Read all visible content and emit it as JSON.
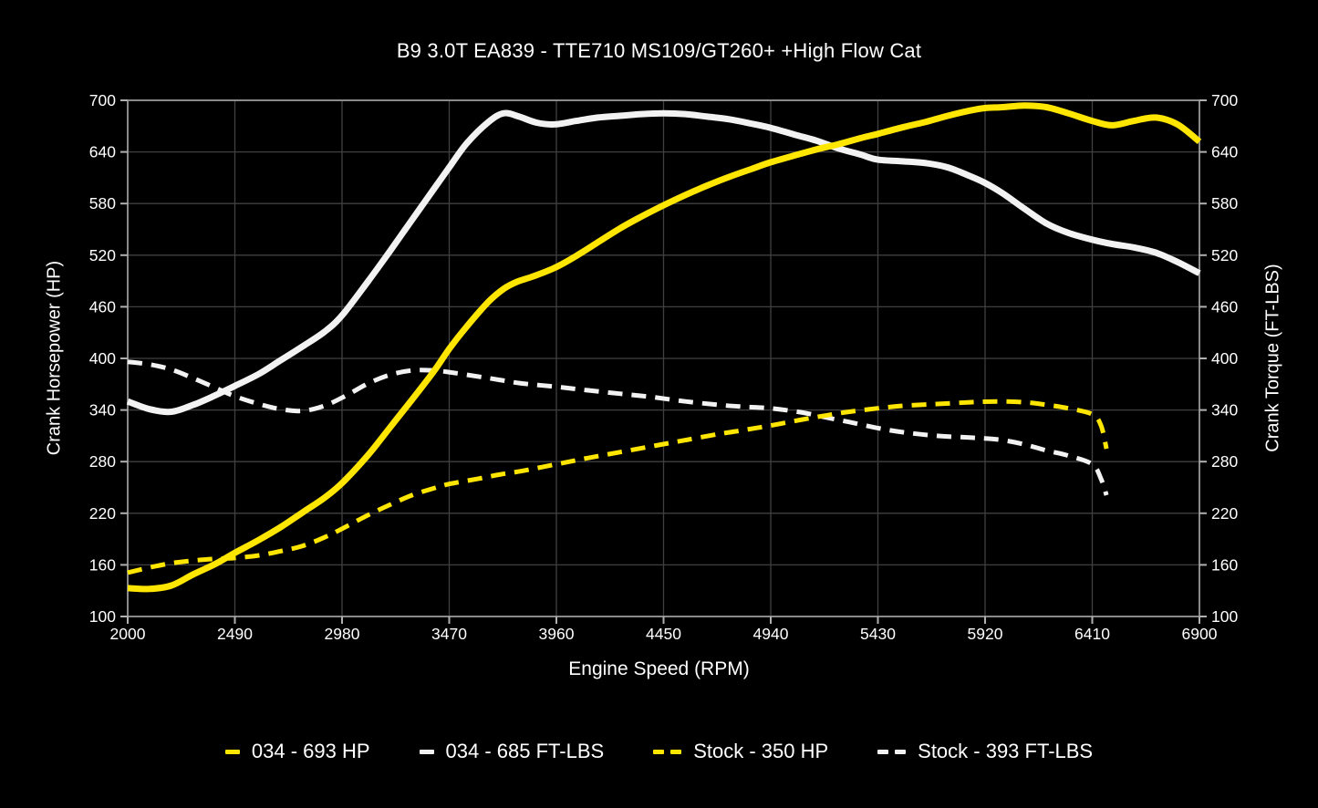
{
  "colors": {
    "background": "#000000",
    "yellow": "#ffe600",
    "white": "#f2f2f2",
    "grid": "#404040",
    "border": "#8a8a8a",
    "tick": "#b0b0b0",
    "text": "#ffffff"
  },
  "chart_data": {
    "type": "line",
    "title": "B9 3.0T EA839 - TTE710 MS109/GT260+ +High Flow Cat",
    "xlabel": "Engine Speed (RPM)",
    "ylabel_left": "Crank Horsepower (HP)",
    "ylabel_right": "Crank Torque (FT-LBS)",
    "xlim": [
      2000,
      6900
    ],
    "ylim": [
      100,
      700
    ],
    "x_ticks": [
      2000,
      2490,
      2980,
      3470,
      3960,
      4450,
      4940,
      5430,
      5920,
      6410,
      6900
    ],
    "y_ticks": [
      100,
      160,
      220,
      280,
      340,
      400,
      460,
      520,
      580,
      640,
      700
    ],
    "grid": true,
    "legend_position": "bottom",
    "series": [
      {
        "name": "034 - 693 HP",
        "axis": "left",
        "color": "#ffe600",
        "style": "solid",
        "peak": 693,
        "points": [
          [
            2000,
            133
          ],
          [
            2100,
            132
          ],
          [
            2200,
            136
          ],
          [
            2300,
            149
          ],
          [
            2400,
            161
          ],
          [
            2490,
            174
          ],
          [
            2600,
            189
          ],
          [
            2700,
            204
          ],
          [
            2800,
            221
          ],
          [
            2900,
            238
          ],
          [
            2980,
            255
          ],
          [
            3100,
            288
          ],
          [
            3200,
            320
          ],
          [
            3300,
            352
          ],
          [
            3400,
            385
          ],
          [
            3470,
            411
          ],
          [
            3550,
            437
          ],
          [
            3650,
            466
          ],
          [
            3720,
            481
          ],
          [
            3780,
            489
          ],
          [
            3850,
            495
          ],
          [
            3950,
            505
          ],
          [
            4050,
            519
          ],
          [
            4150,
            535
          ],
          [
            4250,
            551
          ],
          [
            4350,
            565
          ],
          [
            4450,
            578
          ],
          [
            4550,
            590
          ],
          [
            4650,
            601
          ],
          [
            4750,
            611
          ],
          [
            4850,
            620
          ],
          [
            4940,
            628
          ],
          [
            5050,
            636
          ],
          [
            5150,
            643
          ],
          [
            5250,
            649
          ],
          [
            5350,
            656
          ],
          [
            5430,
            661
          ],
          [
            5550,
            669
          ],
          [
            5650,
            675
          ],
          [
            5750,
            682
          ],
          [
            5850,
            688
          ],
          [
            5920,
            691
          ],
          [
            6000,
            692
          ],
          [
            6100,
            694
          ],
          [
            6200,
            692
          ],
          [
            6300,
            685
          ],
          [
            6410,
            676
          ],
          [
            6500,
            671
          ],
          [
            6600,
            676
          ],
          [
            6700,
            680
          ],
          [
            6800,
            672
          ],
          [
            6900,
            652
          ]
        ]
      },
      {
        "name": "034 - 685 FT-LBS",
        "axis": "right",
        "color": "#f2f2f2",
        "style": "solid",
        "peak": 685,
        "points": [
          [
            2000,
            350
          ],
          [
            2100,
            341
          ],
          [
            2200,
            338
          ],
          [
            2300,
            346
          ],
          [
            2400,
            357
          ],
          [
            2490,
            368
          ],
          [
            2600,
            382
          ],
          [
            2700,
            398
          ],
          [
            2800,
            414
          ],
          [
            2900,
            431
          ],
          [
            2980,
            450
          ],
          [
            3100,
            490
          ],
          [
            3200,
            525
          ],
          [
            3300,
            561
          ],
          [
            3400,
            597
          ],
          [
            3470,
            622
          ],
          [
            3550,
            650
          ],
          [
            3650,
            675
          ],
          [
            3720,
            685
          ],
          [
            3790,
            681
          ],
          [
            3870,
            674
          ],
          [
            3950,
            672
          ],
          [
            4050,
            676
          ],
          [
            4150,
            680
          ],
          [
            4250,
            682
          ],
          [
            4350,
            684
          ],
          [
            4450,
            685
          ],
          [
            4550,
            684
          ],
          [
            4650,
            681
          ],
          [
            4750,
            678
          ],
          [
            4850,
            673
          ],
          [
            4940,
            668
          ],
          [
            5050,
            660
          ],
          [
            5150,
            653
          ],
          [
            5250,
            644
          ],
          [
            5350,
            637
          ],
          [
            5430,
            631
          ],
          [
            5550,
            629
          ],
          [
            5650,
            627
          ],
          [
            5750,
            622
          ],
          [
            5850,
            612
          ],
          [
            5920,
            604
          ],
          [
            6000,
            592
          ],
          [
            6100,
            574
          ],
          [
            6200,
            557
          ],
          [
            6300,
            546
          ],
          [
            6410,
            538
          ],
          [
            6500,
            533
          ],
          [
            6600,
            529
          ],
          [
            6700,
            523
          ],
          [
            6800,
            512
          ],
          [
            6900,
            499
          ]
        ]
      },
      {
        "name": "Stock - 350 HP",
        "axis": "left",
        "color": "#ffe600",
        "style": "dashed",
        "peak": 350,
        "points": [
          [
            2000,
            151
          ],
          [
            2100,
            157
          ],
          [
            2200,
            162
          ],
          [
            2300,
            165
          ],
          [
            2400,
            167
          ],
          [
            2490,
            168
          ],
          [
            2600,
            171
          ],
          [
            2700,
            176
          ],
          [
            2800,
            182
          ],
          [
            2900,
            192
          ],
          [
            2980,
            202
          ],
          [
            3100,
            218
          ],
          [
            3200,
            230
          ],
          [
            3300,
            241
          ],
          [
            3400,
            249
          ],
          [
            3470,
            254
          ],
          [
            3600,
            260
          ],
          [
            3700,
            265
          ],
          [
            3800,
            269
          ],
          [
            3960,
            277
          ],
          [
            4100,
            284
          ],
          [
            4250,
            291
          ],
          [
            4400,
            298
          ],
          [
            4550,
            305
          ],
          [
            4700,
            312
          ],
          [
            4800,
            316
          ],
          [
            4940,
            322
          ],
          [
            5085,
            329
          ],
          [
            5200,
            334
          ],
          [
            5300,
            338
          ],
          [
            5430,
            342
          ],
          [
            5550,
            345
          ],
          [
            5700,
            347
          ],
          [
            5850,
            349
          ],
          [
            5975,
            350
          ],
          [
            6100,
            349
          ],
          [
            6200,
            346
          ],
          [
            6300,
            342
          ],
          [
            6410,
            335
          ],
          [
            6450,
            322
          ],
          [
            6475,
            295
          ]
        ]
      },
      {
        "name": "Stock - 393 FT-LBS",
        "axis": "right",
        "color": "#f2f2f2",
        "style": "dashed",
        "peak": 393,
        "points": [
          [
            2000,
            396
          ],
          [
            2100,
            393
          ],
          [
            2200,
            387
          ],
          [
            2300,
            377
          ],
          [
            2400,
            366
          ],
          [
            2490,
            356
          ],
          [
            2600,
            347
          ],
          [
            2700,
            341
          ],
          [
            2800,
            339
          ],
          [
            2900,
            345
          ],
          [
            3000,
            357
          ],
          [
            3100,
            371
          ],
          [
            3200,
            381
          ],
          [
            3300,
            386
          ],
          [
            3400,
            386
          ],
          [
            3470,
            384
          ],
          [
            3600,
            379
          ],
          [
            3700,
            375
          ],
          [
            3800,
            371
          ],
          [
            3960,
            367
          ],
          [
            4100,
            363
          ],
          [
            4250,
            359
          ],
          [
            4400,
            355
          ],
          [
            4550,
            350
          ],
          [
            4700,
            346
          ],
          [
            4800,
            344
          ],
          [
            4940,
            342
          ],
          [
            5085,
            337
          ],
          [
            5200,
            331
          ],
          [
            5300,
            326
          ],
          [
            5430,
            319
          ],
          [
            5550,
            314
          ],
          [
            5700,
            310
          ],
          [
            5850,
            308
          ],
          [
            5920,
            307
          ],
          [
            6000,
            305
          ],
          [
            6100,
            300
          ],
          [
            6200,
            293
          ],
          [
            6300,
            287
          ],
          [
            6410,
            277
          ],
          [
            6450,
            260
          ],
          [
            6475,
            241
          ]
        ]
      }
    ]
  }
}
